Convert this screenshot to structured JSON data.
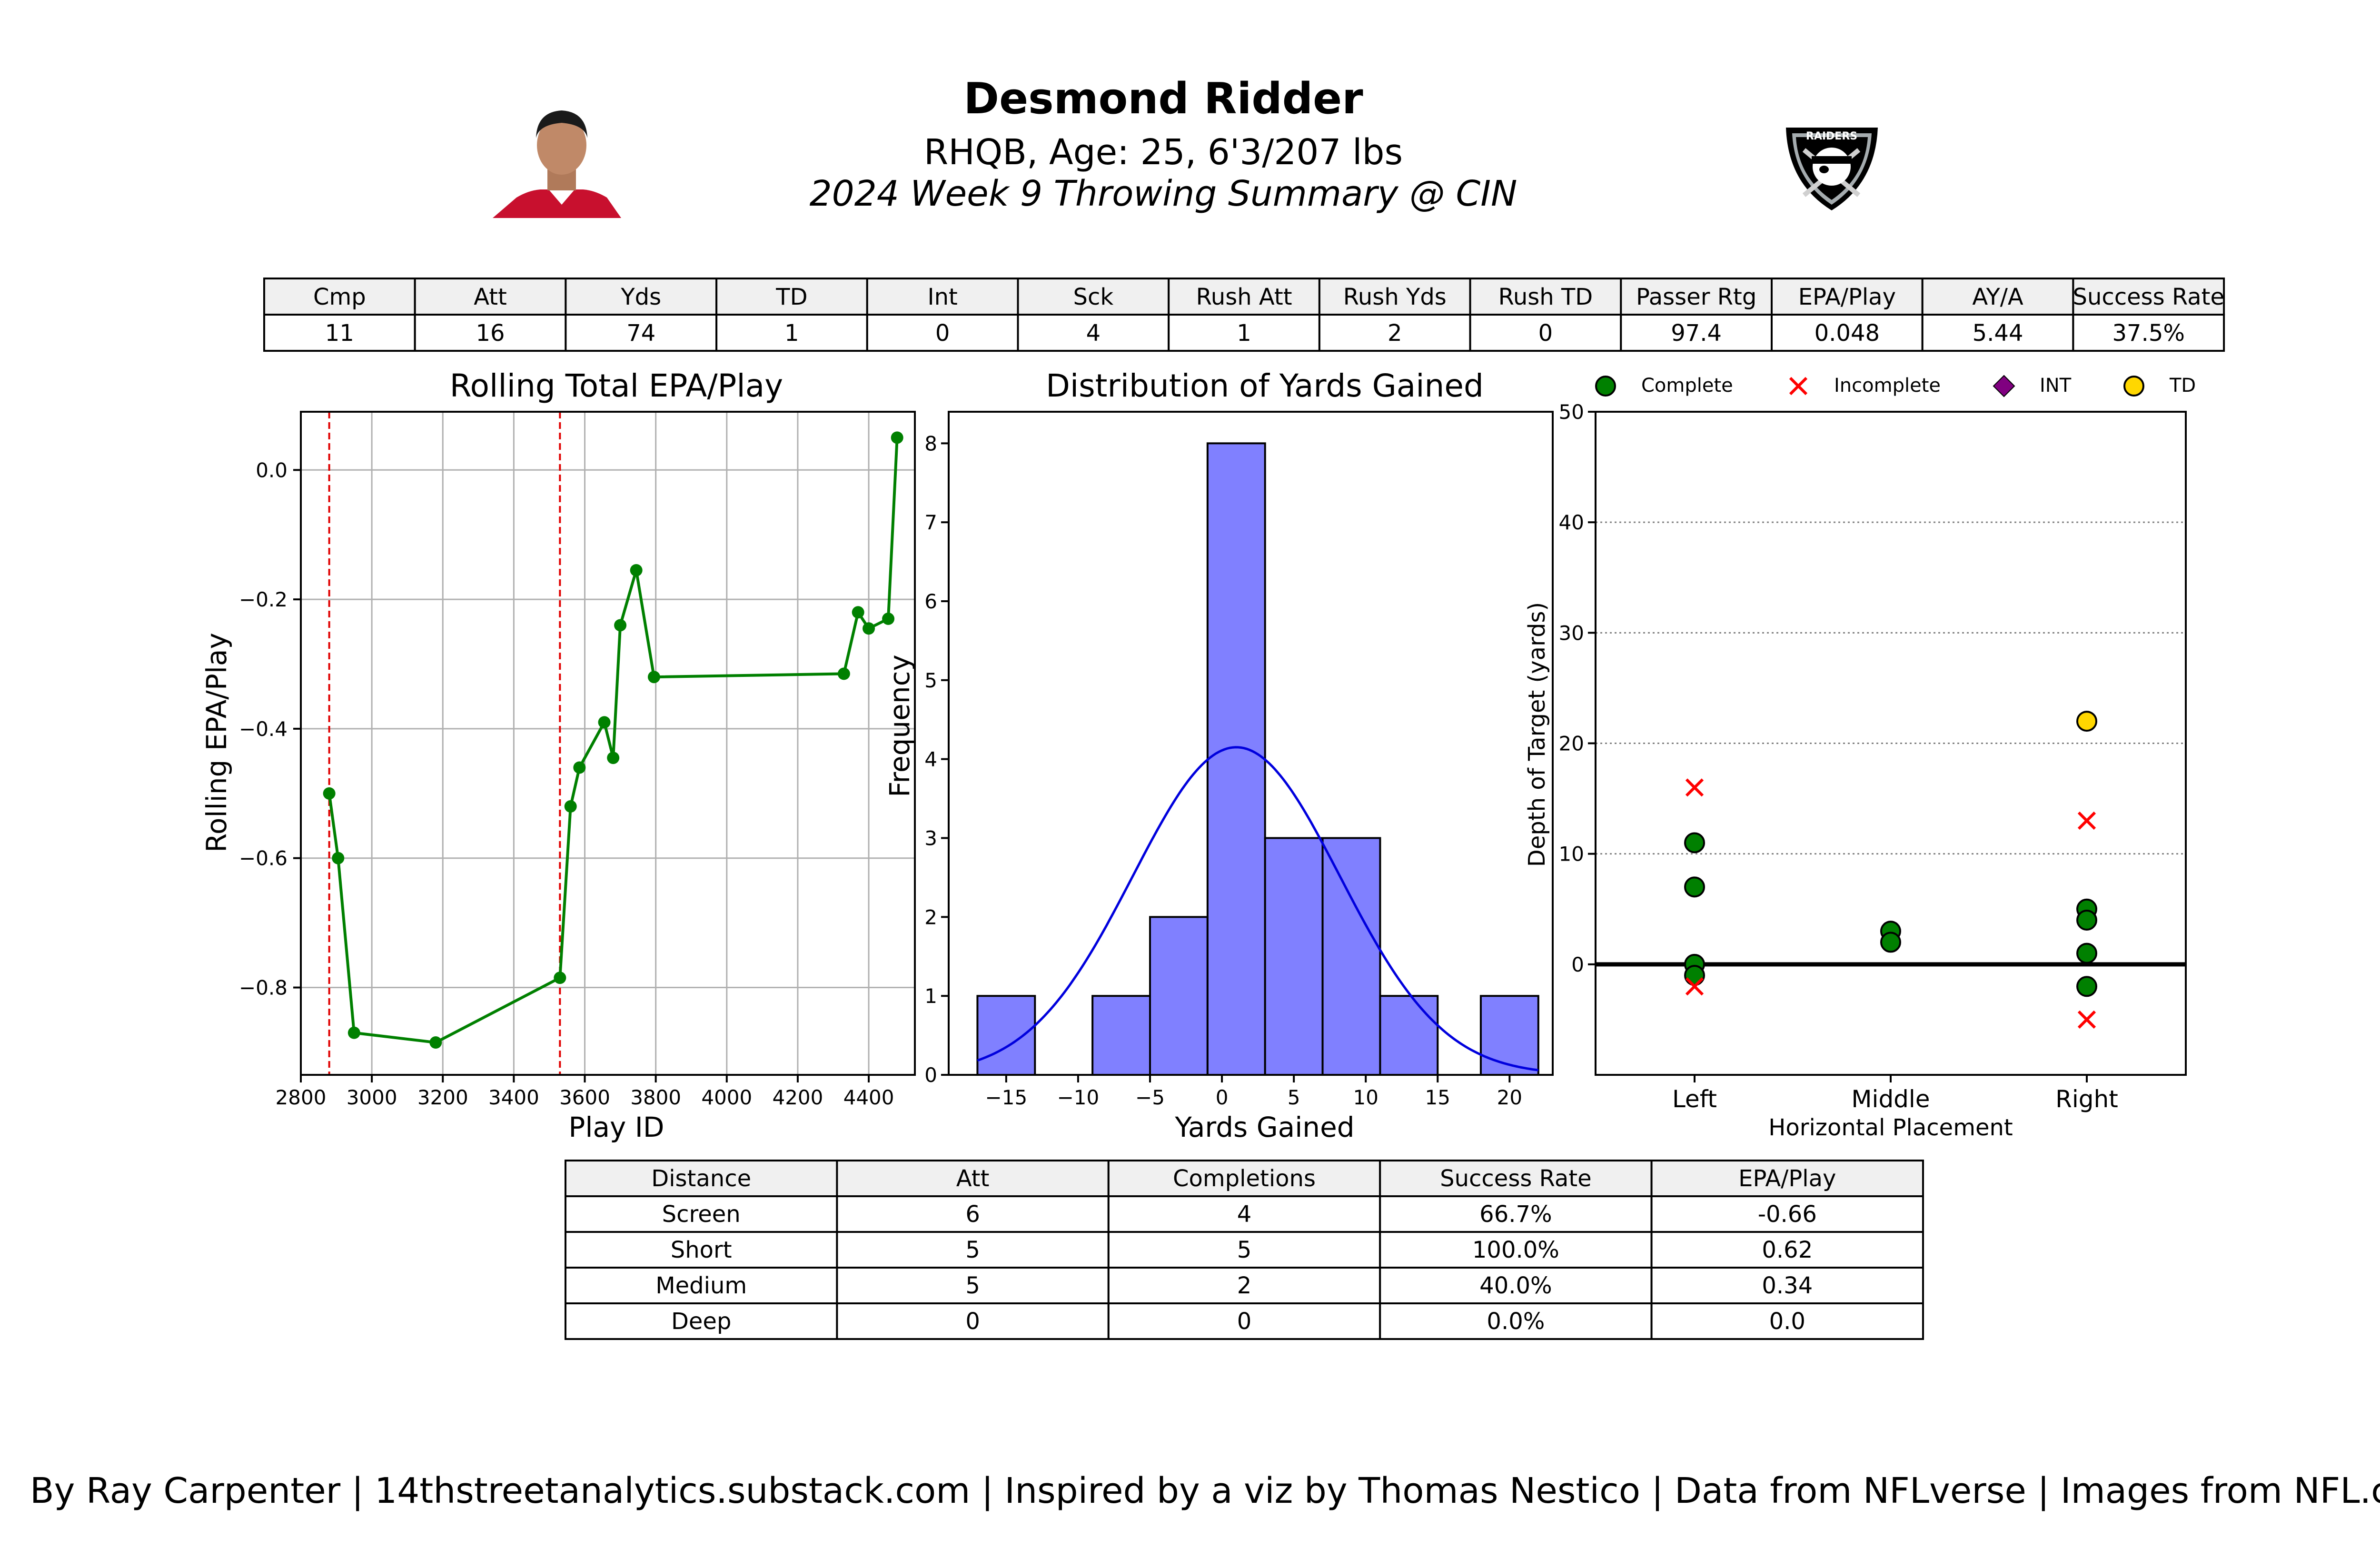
{
  "header": {
    "name": "Desmond Ridder",
    "bio": "RHQB, Age: 25, 6'3/207 lbs",
    "subtitle": "2024 Week 9 Throwing Summary @ CIN",
    "logo_text": "RAIDERS"
  },
  "stats_table": {
    "headers": [
      "Cmp",
      "Att",
      "Yds",
      "TD",
      "Int",
      "Sck",
      "Rush Att",
      "Rush Yds",
      "Rush TD",
      "Passer Rtg",
      "EPA/Play",
      "AY/A",
      "Success Rate"
    ],
    "values": [
      "11",
      "16",
      "74",
      "1",
      "0",
      "4",
      "1",
      "2",
      "0",
      "97.4",
      "0.048",
      "5.44",
      "37.5%"
    ]
  },
  "chart_data": [
    {
      "type": "line",
      "title": "Rolling Total EPA/Play",
      "xlabel": "Play ID",
      "ylabel": "Rolling EPA/Play",
      "xlim": [
        2800,
        4530
      ],
      "ylim": [
        -0.935,
        0.09
      ],
      "xticks": [
        2800,
        3000,
        3200,
        3400,
        3600,
        3800,
        4000,
        4200,
        4400
      ],
      "yticks": [
        0.0,
        -0.2,
        -0.4,
        -0.6,
        -0.8
      ],
      "ytick_labels": [
        "0.0",
        "−0.2",
        "−0.4",
        "−0.6",
        "−0.8"
      ],
      "grid": true,
      "color": "#008000",
      "vlines": [
        2880,
        3530
      ],
      "vline_color": "#e00000",
      "x": [
        2880,
        2905,
        2950,
        3180,
        3530,
        3560,
        3585,
        3655,
        3680,
        3700,
        3745,
        3795,
        4330,
        4370,
        4400,
        4455,
        4480
      ],
      "y": [
        -0.5,
        -0.6,
        -0.87,
        -0.885,
        -0.785,
        -0.52,
        -0.46,
        -0.39,
        -0.445,
        -0.24,
        -0.155,
        -0.32,
        -0.315,
        -0.22,
        -0.245,
        -0.23,
        0.05
      ]
    },
    {
      "type": "histogram",
      "title": "Distribution of Yards Gained",
      "xlabel": "Yards Gained",
      "ylabel": "Frequency",
      "xlim": [
        -19,
        23
      ],
      "ylim": [
        0,
        8.4
      ],
      "xticks": [
        -15,
        -10,
        -5,
        0,
        5,
        10,
        15,
        20
      ],
      "xtick_labels": [
        "−15",
        "−10",
        "−5",
        "0",
        "5",
        "10",
        "15",
        "20"
      ],
      "yticks": [
        0,
        1,
        2,
        3,
        4,
        5,
        6,
        7,
        8
      ],
      "bin_edges": [
        -17,
        -13,
        -9,
        -5,
        -1,
        3,
        7,
        11,
        15,
        18,
        22
      ],
      "values": [
        1,
        0,
        1,
        2,
        8,
        3,
        3,
        1,
        0,
        1
      ],
      "bar_color": "#8080ff",
      "kde": {
        "mean": 1.0,
        "sd": 7.2,
        "peak": 4.15,
        "color": "#0000dd"
      }
    },
    {
      "type": "scatter",
      "xlabel": "Horizontal Placement",
      "ylabel": "Depth of Target (yards)",
      "categories": [
        "Left",
        "Middle",
        "Right"
      ],
      "ylim": [
        -10,
        50
      ],
      "yticks": [
        0,
        10,
        20,
        30,
        40,
        50
      ],
      "legend": [
        {
          "name": "Complete",
          "marker": "circle",
          "color": "#008000"
        },
        {
          "name": "Incomplete",
          "marker": "x",
          "color": "#ff0000"
        },
        {
          "name": "INT",
          "marker": "diamond",
          "color": "#800080"
        },
        {
          "name": "TD",
          "marker": "circle",
          "color": "#ffd700"
        }
      ],
      "legend_position": "top",
      "points": [
        {
          "cat": 0,
          "y": 11,
          "type": "Complete"
        },
        {
          "cat": 0,
          "y": 7,
          "type": "Complete"
        },
        {
          "cat": 0,
          "y": 0,
          "type": "Complete"
        },
        {
          "cat": 0,
          "y": -1,
          "type": "Complete"
        },
        {
          "cat": 0,
          "y": 16,
          "type": "Incomplete"
        },
        {
          "cat": 0,
          "y": -2,
          "type": "Incomplete"
        },
        {
          "cat": 1,
          "y": 3,
          "type": "Complete"
        },
        {
          "cat": 1,
          "y": 2,
          "type": "Complete"
        },
        {
          "cat": 2,
          "y": 22,
          "type": "TD"
        },
        {
          "cat": 2,
          "y": 13,
          "type": "Incomplete"
        },
        {
          "cat": 2,
          "y": 5,
          "type": "Complete"
        },
        {
          "cat": 2,
          "y": 4,
          "type": "Complete"
        },
        {
          "cat": 2,
          "y": 1,
          "type": "Complete"
        },
        {
          "cat": 2,
          "y": -2,
          "type": "Complete"
        },
        {
          "cat": 2,
          "y": -5,
          "type": "Incomplete"
        }
      ]
    }
  ],
  "distance_table": {
    "headers": [
      "Distance",
      "Att",
      "Completions",
      "Success Rate",
      "EPA/Play"
    ],
    "rows": [
      [
        "Screen",
        "6",
        "4",
        "66.7%",
        "-0.66"
      ],
      [
        "Short",
        "5",
        "5",
        "100.0%",
        "0.62"
      ],
      [
        "Medium",
        "5",
        "2",
        "40.0%",
        "0.34"
      ],
      [
        "Deep",
        "0",
        "0",
        "0.0%",
        "0.0"
      ]
    ]
  },
  "footer": "By Ray Carpenter | 14thstreetanalytics.substack.com | Inspired by a viz by Thomas Nestico | Data from NFLverse | Images from NFL.com"
}
